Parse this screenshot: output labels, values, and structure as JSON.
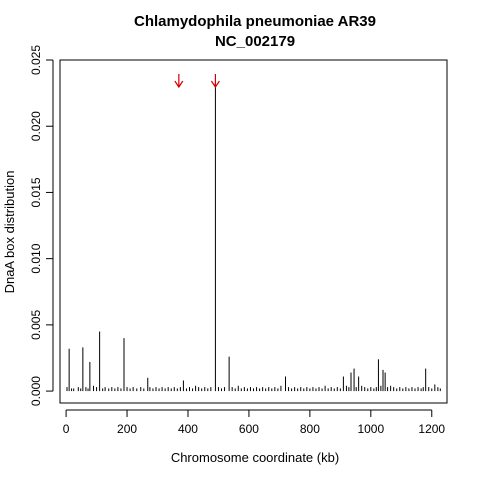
{
  "chart_data": {
    "type": "bar",
    "title": [
      "Chlamydophila pneumoniae AR39",
      "NC_002179"
    ],
    "xlabel": "Chromosome coordinate (kb)",
    "ylabel": "DnaA box distribution",
    "xlim": [
      -20,
      1250
    ],
    "ylim": [
      -0.0009,
      0.025
    ],
    "xticks": [
      0,
      200,
      400,
      600,
      800,
      1000,
      1200
    ],
    "yticks": [
      0.0,
      0.005,
      0.01,
      0.015,
      0.02,
      0.025
    ],
    "ytick_labels": [
      "0.000",
      "0.005",
      "0.010",
      "0.015",
      "0.020",
      "0.025"
    ],
    "annotations": [
      {
        "kind": "arrow",
        "color": "#d40000",
        "x": 370
      },
      {
        "kind": "arrow",
        "color": "#d40000",
        "x": 490
      }
    ],
    "points": [
      [
        10,
        0.0032
      ],
      [
        55,
        0.0033
      ],
      [
        78,
        0.0022
      ],
      [
        110,
        0.0045
      ],
      [
        190,
        0.004
      ],
      [
        268,
        0.001
      ],
      [
        385,
        0.0008
      ],
      [
        490,
        0.0233
      ],
      [
        535,
        0.0026
      ],
      [
        720,
        0.0011
      ],
      [
        910,
        0.0011
      ],
      [
        935,
        0.0014
      ],
      [
        945,
        0.0017
      ],
      [
        960,
        0.0011
      ],
      [
        1025,
        0.0024
      ],
      [
        1040,
        0.0016
      ],
      [
        1047,
        0.0014
      ],
      [
        1180,
        0.0017
      ],
      [
        1210,
        0.0005
      ],
      [
        3,
        0.0003
      ],
      [
        18,
        0.0002
      ],
      [
        25,
        0.0002
      ],
      [
        40,
        0.0003
      ],
      [
        48,
        0.0002
      ],
      [
        65,
        0.0003
      ],
      [
        72,
        0.0002
      ],
      [
        90,
        0.0004
      ],
      [
        100,
        0.0003
      ],
      [
        120,
        0.0002
      ],
      [
        128,
        0.0003
      ],
      [
        140,
        0.0002
      ],
      [
        150,
        0.0003
      ],
      [
        160,
        0.0002
      ],
      [
        170,
        0.0003
      ],
      [
        180,
        0.0002
      ],
      [
        200,
        0.0003
      ],
      [
        210,
        0.0002
      ],
      [
        220,
        0.0003
      ],
      [
        232,
        0.0002
      ],
      [
        245,
        0.0003
      ],
      [
        255,
        0.0002
      ],
      [
        275,
        0.0003
      ],
      [
        285,
        0.0002
      ],
      [
        295,
        0.0003
      ],
      [
        305,
        0.0002
      ],
      [
        315,
        0.0003
      ],
      [
        325,
        0.0002
      ],
      [
        335,
        0.0003
      ],
      [
        345,
        0.0002
      ],
      [
        355,
        0.0003
      ],
      [
        365,
        0.0002
      ],
      [
        375,
        0.0003
      ],
      [
        395,
        0.0002
      ],
      [
        405,
        0.0003
      ],
      [
        415,
        0.0002
      ],
      [
        425,
        0.0004
      ],
      [
        435,
        0.0003
      ],
      [
        445,
        0.0002
      ],
      [
        455,
        0.0003
      ],
      [
        465,
        0.0002
      ],
      [
        475,
        0.0003
      ],
      [
        500,
        0.0003
      ],
      [
        510,
        0.0002
      ],
      [
        520,
        0.0003
      ],
      [
        545,
        0.0003
      ],
      [
        555,
        0.0002
      ],
      [
        565,
        0.0004
      ],
      [
        575,
        0.0002
      ],
      [
        585,
        0.0003
      ],
      [
        595,
        0.0002
      ],
      [
        605,
        0.0003
      ],
      [
        615,
        0.0002
      ],
      [
        625,
        0.0003
      ],
      [
        635,
        0.0002
      ],
      [
        645,
        0.0003
      ],
      [
        655,
        0.0002
      ],
      [
        665,
        0.0003
      ],
      [
        675,
        0.0002
      ],
      [
        685,
        0.0003
      ],
      [
        695,
        0.0002
      ],
      [
        705,
        0.0004
      ],
      [
        730,
        0.0003
      ],
      [
        740,
        0.0002
      ],
      [
        750,
        0.0003
      ],
      [
        760,
        0.0002
      ],
      [
        770,
        0.0003
      ],
      [
        780,
        0.0002
      ],
      [
        790,
        0.0003
      ],
      [
        800,
        0.0002
      ],
      [
        810,
        0.0003
      ],
      [
        820,
        0.0002
      ],
      [
        830,
        0.0003
      ],
      [
        840,
        0.0002
      ],
      [
        850,
        0.0004
      ],
      [
        860,
        0.0002
      ],
      [
        870,
        0.0003
      ],
      [
        880,
        0.0002
      ],
      [
        890,
        0.0003
      ],
      [
        900,
        0.0002
      ],
      [
        920,
        0.0004
      ],
      [
        928,
        0.0003
      ],
      [
        952,
        0.0003
      ],
      [
        970,
        0.0004
      ],
      [
        980,
        0.0003
      ],
      [
        990,
        0.0002
      ],
      [
        1000,
        0.0003
      ],
      [
        1010,
        0.0002
      ],
      [
        1018,
        0.0003
      ],
      [
        1033,
        0.0004
      ],
      [
        1055,
        0.0003
      ],
      [
        1065,
        0.0004
      ],
      [
        1075,
        0.0003
      ],
      [
        1085,
        0.0002
      ],
      [
        1095,
        0.0003
      ],
      [
        1105,
        0.0002
      ],
      [
        1115,
        0.0003
      ],
      [
        1125,
        0.0002
      ],
      [
        1135,
        0.0003
      ],
      [
        1145,
        0.0002
      ],
      [
        1155,
        0.0003
      ],
      [
        1165,
        0.0002
      ],
      [
        1172,
        0.0003
      ],
      [
        1190,
        0.0003
      ],
      [
        1200,
        0.0002
      ],
      [
        1220,
        0.0003
      ],
      [
        1228,
        0.0002
      ]
    ]
  }
}
